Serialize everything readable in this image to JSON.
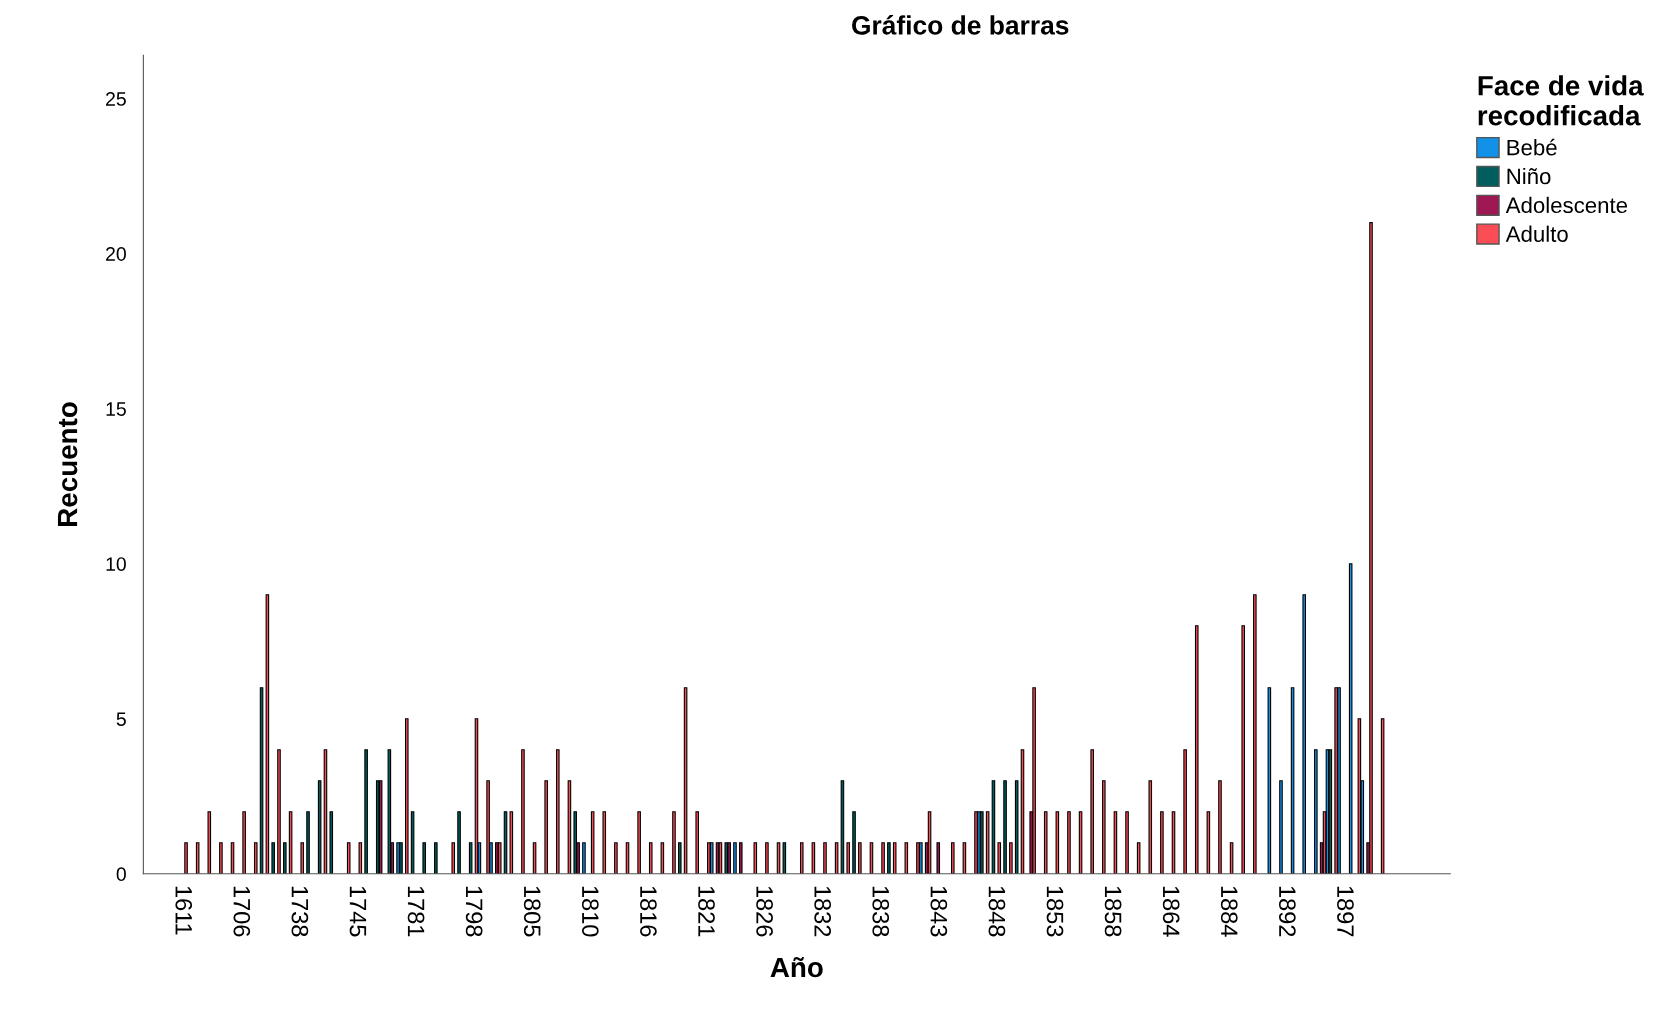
{
  "chart_data": {
    "type": "bar",
    "title": "Gráfico de barras",
    "xlabel": "Año",
    "ylabel": "Recuento",
    "legend_title": "Face de vida\nrecodificada",
    "categories": [
      "1611",
      null,
      null,
      null,
      null,
      "1706",
      null,
      null,
      null,
      null,
      "1738",
      null,
      null,
      null,
      null,
      "1745",
      null,
      null,
      null,
      null,
      "1781",
      null,
      null,
      null,
      null,
      "1798",
      null,
      null,
      null,
      null,
      "1805",
      null,
      null,
      null,
      null,
      "1810",
      null,
      null,
      null,
      null,
      "1816",
      null,
      null,
      null,
      null,
      "1821",
      null,
      null,
      null,
      null,
      "1826",
      null,
      null,
      null,
      null,
      "1832",
      null,
      null,
      null,
      null,
      "1838",
      null,
      null,
      null,
      null,
      "1843",
      null,
      null,
      null,
      null,
      "1848",
      null,
      null,
      null,
      null,
      "1853",
      null,
      null,
      null,
      null,
      "1858",
      null,
      null,
      null,
      null,
      "1864",
      null,
      null,
      null,
      null,
      "1884",
      null,
      null,
      null,
      null,
      "1892",
      null,
      null,
      null,
      null,
      "1897",
      null,
      null,
      null
    ],
    "series": [
      {
        "name": "Bebé",
        "color": "#1192e8",
        "values": [
          null,
          null,
          null,
          null,
          null,
          null,
          null,
          null,
          null,
          null,
          null,
          null,
          null,
          null,
          null,
          null,
          null,
          null,
          null,
          1,
          null,
          null,
          null,
          null,
          null,
          null,
          1,
          1,
          null,
          null,
          null,
          null,
          null,
          null,
          null,
          1,
          null,
          null,
          null,
          null,
          null,
          null,
          null,
          null,
          null,
          null,
          1,
          null,
          1,
          null,
          null,
          null,
          null,
          null,
          null,
          null,
          null,
          null,
          null,
          null,
          null,
          null,
          null,
          null,
          1,
          null,
          null,
          null,
          null,
          2,
          null,
          null,
          null,
          null,
          null,
          null,
          null,
          null,
          null,
          null,
          null,
          null,
          null,
          null,
          null,
          null,
          null,
          null,
          null,
          null,
          null,
          null,
          null,
          null,
          6,
          3,
          6,
          9,
          4,
          4,
          6,
          10,
          3,
          null
        ]
      },
      {
        "name": "Niño",
        "color": "#005f5e",
        "values": [
          null,
          null,
          null,
          null,
          null,
          null,
          null,
          6,
          1,
          1,
          null,
          2,
          3,
          2,
          null,
          null,
          4,
          3,
          4,
          1,
          2,
          1,
          1,
          null,
          2,
          1,
          null,
          null,
          2,
          null,
          null,
          null,
          null,
          null,
          2,
          null,
          null,
          null,
          null,
          null,
          null,
          null,
          null,
          1,
          null,
          null,
          null,
          1,
          null,
          null,
          null,
          null,
          1,
          null,
          null,
          null,
          null,
          3,
          2,
          null,
          null,
          1,
          null,
          null,
          null,
          null,
          null,
          null,
          null,
          2,
          3,
          3,
          3,
          null,
          null,
          null,
          null,
          null,
          null,
          null,
          null,
          null,
          null,
          null,
          null,
          null,
          null,
          null,
          null,
          null,
          null,
          null,
          null,
          null,
          null,
          null,
          null,
          null,
          null,
          4,
          null,
          null,
          null,
          null
        ]
      },
      {
        "name": "Adolescente",
        "color": "#9f1853",
        "values": [
          null,
          null,
          null,
          null,
          null,
          null,
          null,
          null,
          null,
          null,
          null,
          null,
          null,
          null,
          null,
          null,
          null,
          3,
          1,
          null,
          null,
          null,
          null,
          null,
          null,
          null,
          null,
          1,
          null,
          null,
          null,
          null,
          null,
          null,
          1,
          null,
          null,
          null,
          null,
          null,
          null,
          null,
          null,
          null,
          null,
          null,
          1,
          1,
          1,
          null,
          null,
          null,
          null,
          null,
          null,
          null,
          null,
          null,
          null,
          null,
          null,
          null,
          null,
          null,
          1,
          1,
          null,
          null,
          null,
          null,
          null,
          null,
          null,
          2,
          null,
          null,
          null,
          null,
          null,
          null,
          null,
          null,
          null,
          null,
          null,
          null,
          null,
          null,
          null,
          null,
          null,
          null,
          null,
          null,
          null,
          null,
          null,
          null,
          1,
          null,
          null,
          null,
          1,
          null
        ]
      },
      {
        "name": "Adulto",
        "color": "#fa4d56",
        "values": [
          1,
          1,
          2,
          1,
          1,
          2,
          1,
          9,
          4,
          2,
          1,
          null,
          4,
          null,
          1,
          1,
          null,
          null,
          null,
          5,
          null,
          null,
          null,
          1,
          null,
          5,
          3,
          1,
          2,
          4,
          1,
          3,
          4,
          3,
          null,
          2,
          2,
          1,
          1,
          2,
          1,
          1,
          2,
          6,
          2,
          1,
          1,
          null,
          null,
          1,
          1,
          1,
          null,
          1,
          1,
          1,
          1,
          1,
          1,
          1,
          1,
          1,
          1,
          1,
          2,
          null,
          1,
          1,
          2,
          2,
          1,
          1,
          4,
          6,
          2,
          2,
          2,
          2,
          4,
          3,
          2,
          2,
          1,
          3,
          2,
          2,
          4,
          8,
          2,
          3,
          1,
          8,
          9,
          null,
          null,
          null,
          null,
          null,
          2,
          6,
          null,
          5,
          21,
          5
        ]
      }
    ],
    "ylim": [
      0,
      26.4
    ],
    "yticks": [
      0,
      5,
      10,
      15,
      20,
      25
    ],
    "grid": false,
    "legend": "top right"
  }
}
